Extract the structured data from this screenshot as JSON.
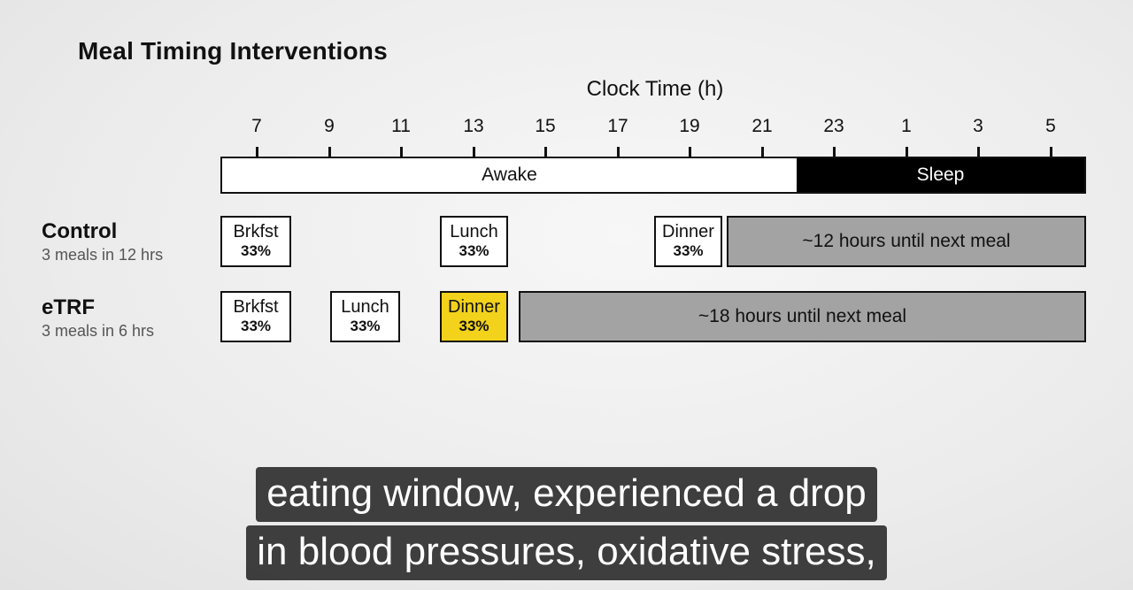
{
  "title": "Meal Timing Interventions",
  "axis": {
    "title": "Clock Time (h)",
    "ticks": [
      "7",
      "9",
      "11",
      "13",
      "15",
      "17",
      "19",
      "21",
      "23",
      "1",
      "3",
      "5"
    ]
  },
  "timeline": {
    "awake_label": "Awake",
    "sleep_label": "Sleep"
  },
  "rows": [
    {
      "label": "Control",
      "sublabel": "3 meals in 12 hrs",
      "meals": [
        {
          "name": "Brkfst",
          "pct": "33%",
          "highlight": false
        },
        {
          "name": "Lunch",
          "pct": "33%",
          "highlight": false
        },
        {
          "name": "Dinner",
          "pct": "33%",
          "highlight": false
        }
      ],
      "fast_label": "~12 hours until next meal"
    },
    {
      "label": "eTRF",
      "sublabel": "3 meals in 6 hrs",
      "meals": [
        {
          "name": "Brkfst",
          "pct": "33%",
          "highlight": false
        },
        {
          "name": "Lunch",
          "pct": "33%",
          "highlight": false
        },
        {
          "name": "Dinner",
          "pct": "33%",
          "highlight": true
        }
      ],
      "fast_label": "~18 hours until next meal"
    }
  ],
  "colors": {
    "highlight": "#f2d21b",
    "fast": "#a3a3a3",
    "sleep": "#000000"
  },
  "caption": {
    "line1": "eating window, experienced a drop",
    "line2": "in blood pressures, oxidative stress,"
  }
}
